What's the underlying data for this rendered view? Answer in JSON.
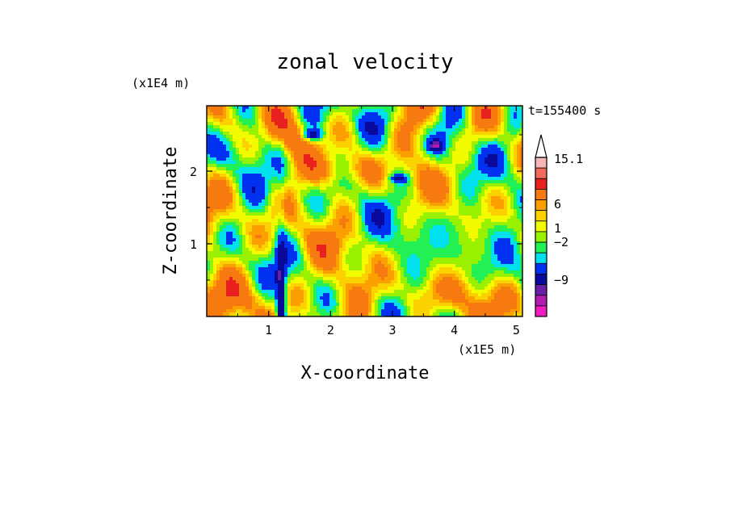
{
  "chart_data": {
    "type": "heatmap",
    "title": "zonal velocity",
    "xlabel": "X-coordinate",
    "ylabel": "Z-coordinate",
    "x_unit": "(x1E5 m)",
    "y_unit": "(x1E4 m)",
    "time_label": "t=155400 s",
    "xlim": [
      0.0,
      5.1
    ],
    "ylim": [
      0.0,
      2.9
    ],
    "x_ticks": [
      "1",
      "2",
      "3",
      "4",
      "5"
    ],
    "y_ticks": [
      "1",
      "2"
    ],
    "colorbar": {
      "labels": [
        "15.1",
        "6",
        "1",
        "−2",
        "−9"
      ],
      "bins": [
        {
          "lo": 10,
          "hi": 15.1,
          "color": "#f7b5b5"
        },
        {
          "lo": 8,
          "hi": 10,
          "color": "#f26b5b"
        },
        {
          "lo": 6,
          "hi": 8,
          "color": "#e8201e"
        },
        {
          "lo": 3,
          "hi": 6,
          "color": "#f77a10"
        },
        {
          "lo": 2,
          "hi": 3,
          "color": "#fba000"
        },
        {
          "lo": 1,
          "hi": 2,
          "color": "#fbd200"
        },
        {
          "lo": 0,
          "hi": 1,
          "color": "#f3fb00"
        },
        {
          "lo": -1,
          "hi": 0,
          "color": "#99f000"
        },
        {
          "lo": -2,
          "hi": -1,
          "color": "#22f055"
        },
        {
          "lo": -3,
          "hi": -2,
          "color": "#00e0ef"
        },
        {
          "lo": -5,
          "hi": -3,
          "color": "#0030f0"
        },
        {
          "lo": -7,
          "hi": -5,
          "color": "#0a0a9a"
        },
        {
          "lo": -9,
          "hi": -7,
          "color": "#6a1fa8"
        },
        {
          "lo": -11,
          "hi": -9,
          "color": "#b01cb0"
        },
        {
          "lo": -13,
          "hi": -11,
          "color": "#ef1cbe"
        }
      ]
    }
  }
}
